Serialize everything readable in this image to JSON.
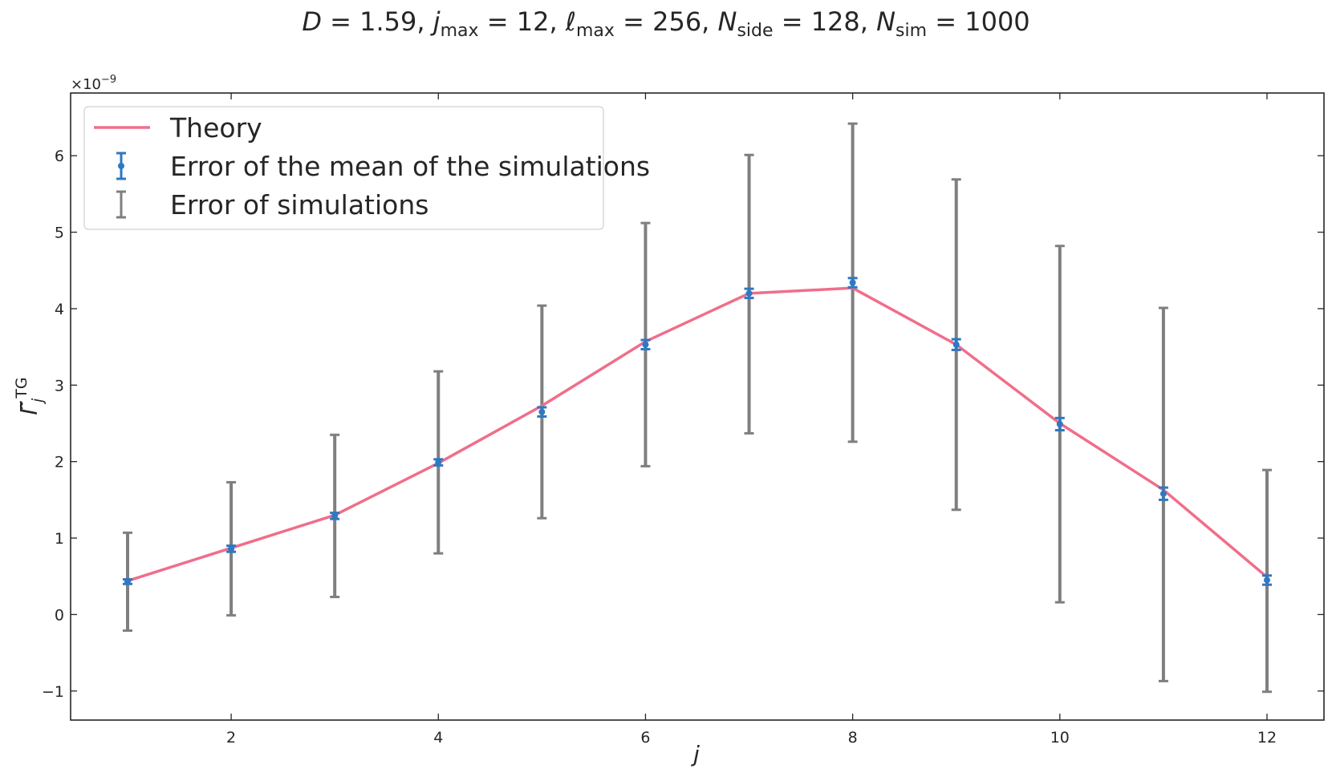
{
  "chart_data": {
    "type": "line",
    "title_parts": {
      "D_sym": "D",
      "D_val": " = 1.59,  ",
      "j_sym": "j",
      "j_sub": "max",
      "j_val": " = 12,  ",
      "l_sym": "ℓ",
      "l_sub": "max",
      "l_val": " = 256,  ",
      "ns_sym": "N",
      "ns_sub": "side",
      "ns_val": " = 128, ",
      "nsim_sym": "N",
      "nsim_sub": "sim",
      "nsim_val": " = 1000"
    },
    "xlabel": "j",
    "ylabel_main": "Γ̃",
    "ylabel_sub": "j",
    "ylabel_sup": "TG",
    "y_offset_text": "×10",
    "y_offset_exp": "−9",
    "xlim": [
      0.45,
      12.55
    ],
    "ylim": [
      -1.38,
      6.82
    ],
    "x_ticks": [
      2,
      4,
      6,
      8,
      10,
      12
    ],
    "x_tick_labels": [
      "2",
      "4",
      "6",
      "8",
      "10",
      "12"
    ],
    "y_ticks": [
      -1,
      0,
      1,
      2,
      3,
      4,
      5,
      6
    ],
    "y_tick_labels": [
      "−1",
      "0",
      "1",
      "2",
      "3",
      "4",
      "5",
      "6"
    ],
    "grid": false,
    "legend_position": "upper-left",
    "x": [
      1,
      2,
      3,
      4,
      5,
      6,
      7,
      8,
      9,
      10,
      11,
      12
    ],
    "series": [
      {
        "name": "Theory",
        "kind": "line",
        "color": "#f06e8a",
        "values": [
          0.44,
          0.87,
          1.3,
          1.98,
          2.73,
          3.57,
          4.2,
          4.27,
          3.53,
          2.5,
          1.63,
          0.49
        ]
      },
      {
        "name": "Error of the mean of the simulations",
        "kind": "errorbar",
        "color": "#2f78c2",
        "values": [
          0.43,
          0.86,
          1.29,
          1.99,
          2.65,
          3.53,
          4.2,
          4.34,
          3.53,
          2.49,
          1.58,
          0.45
        ],
        "err": [
          0.03,
          0.04,
          0.04,
          0.04,
          0.06,
          0.06,
          0.06,
          0.06,
          0.07,
          0.08,
          0.08,
          0.06
        ]
      },
      {
        "name": "Error of simulations",
        "kind": "errorbar",
        "color": "#7f7f7f",
        "values": [
          0.43,
          0.86,
          1.29,
          1.99,
          2.65,
          3.53,
          4.19,
          4.34,
          3.53,
          2.49,
          1.57,
          0.44
        ],
        "err": [
          0.64,
          0.87,
          1.06,
          1.19,
          1.39,
          1.59,
          1.82,
          2.08,
          2.16,
          2.33,
          2.44,
          1.45
        ]
      }
    ]
  }
}
